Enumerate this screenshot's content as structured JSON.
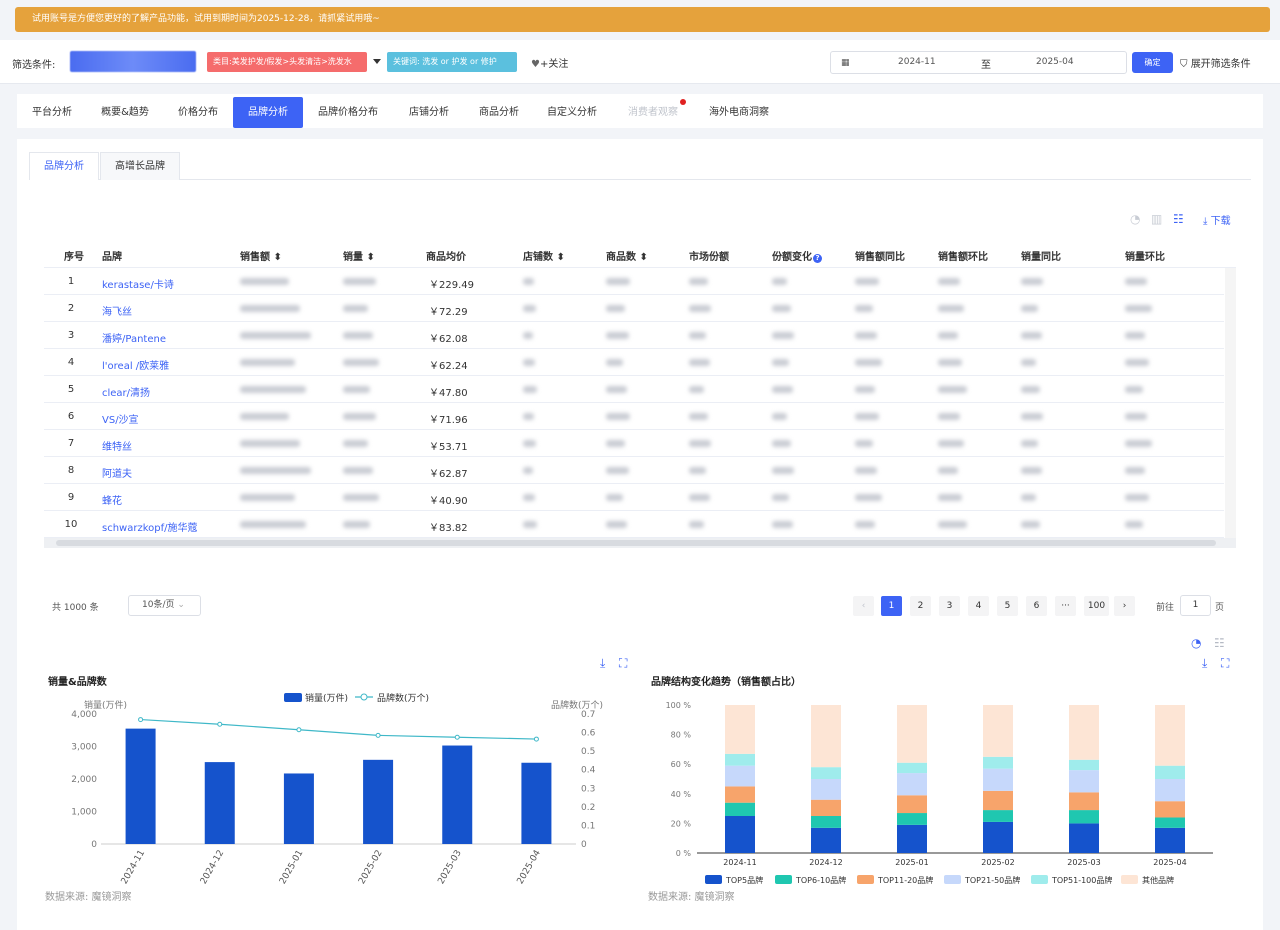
{
  "trial_banner": "试用账号是方便您更好的了解产品功能，试用到期时间为2025-12-28，请抓紧试用哦~",
  "filter": {
    "label": "筛选条件:",
    "category_tag": "类目:美发护发/假发>头发清洁>洗发水",
    "keyword_tag": "关键词: 洗发 or 护发 or 修护",
    "follow": "+关注",
    "date_start": "2024-11",
    "date_sep": "至",
    "date_end": "2025-04",
    "confirm": "确定",
    "expand": "展开筛选条件"
  },
  "nav_tabs": [
    "平台分析",
    "概要&趋势",
    "价格分布",
    "品牌分析",
    "品牌价格分布",
    "店铺分析",
    "商品分析",
    "自定义分析",
    "消费者观察",
    "海外电商洞察"
  ],
  "sub_tabs": [
    "品牌分析",
    "高增长品牌"
  ],
  "download_label": "下载",
  "table": {
    "headers": [
      "序号",
      "品牌",
      "销售额",
      "销量",
      "商品均价",
      "店铺数",
      "商品数",
      "市场份额",
      "份额变化",
      "销售额同比",
      "销售额环比",
      "销量同比",
      "销量环比"
    ],
    "rows": [
      {
        "num": "1",
        "brand": "kerastase/卡诗",
        "price": "￥229.49"
      },
      {
        "num": "2",
        "brand": "海飞丝",
        "price": "￥72.29"
      },
      {
        "num": "3",
        "brand": "潘婷/Pantene",
        "price": "￥62.08"
      },
      {
        "num": "4",
        "brand": "l'oreal /欧莱雅",
        "price": "￥62.24"
      },
      {
        "num": "5",
        "brand": "clear/清扬",
        "price": "￥47.80"
      },
      {
        "num": "6",
        "brand": "VS/沙宣",
        "price": "￥71.96"
      },
      {
        "num": "7",
        "brand": "维特丝",
        "price": "￥53.71"
      },
      {
        "num": "8",
        "brand": "阿道夫",
        "price": "￥62.87"
      },
      {
        "num": "9",
        "brand": "蜂花",
        "price": "￥40.90"
      },
      {
        "num": "10",
        "brand": "schwarzkopf/施华蔻",
        "price": "￥83.82"
      }
    ]
  },
  "pagination": {
    "total": "共 1000 条",
    "page_size": "10条/页",
    "pages": [
      "1",
      "2",
      "3",
      "4",
      "5",
      "6",
      "···",
      "100"
    ],
    "goto_label": "前往",
    "goto_value": "1",
    "goto_suffix": "页"
  },
  "chart_data": [
    {
      "type": "bar",
      "title": "销量&品牌数",
      "categories": [
        "2024-11",
        "2024-12",
        "2025-01",
        "2025-02",
        "2025-03",
        "2025-04"
      ],
      "series": [
        {
          "name": "销量(万件)",
          "type": "bar",
          "values": [
            3550,
            2520,
            2170,
            2590,
            3030,
            2500
          ],
          "color": "#1553cc"
        },
        {
          "name": "品牌数(万个)",
          "type": "line",
          "values": [
            0.67,
            0.645,
            0.615,
            0.585,
            0.575,
            0.565
          ],
          "color": "#3fb8c8"
        }
      ],
      "ylabel": "销量(万件)",
      "ylabel_right": "品牌数(万个)",
      "ylim": [
        0,
        4000
      ],
      "ylim_right": [
        0,
        0.7
      ],
      "yticks": [
        "4,000",
        "3,000",
        "2,000",
        "1,000",
        "0"
      ],
      "yticks_right": [
        "0.7",
        "0.6",
        "0.5",
        "0.4",
        "0.3",
        "0.2",
        "0.1",
        "0"
      ],
      "source": "数据来源: 魔镜洞察"
    },
    {
      "type": "bar",
      "stacked": true,
      "title": "品牌结构变化趋势（销售额占比）",
      "categories": [
        "2024-11",
        "2024-12",
        "2025-01",
        "2025-02",
        "2025-03",
        "2025-04"
      ],
      "series": [
        {
          "name": "TOP5品牌",
          "values": [
            25,
            17,
            19,
            21,
            20,
            17
          ],
          "color": "#1553cc"
        },
        {
          "name": "TOP6-10品牌",
          "values": [
            9,
            8,
            8,
            8,
            9,
            7
          ],
          "color": "#1fc7b0"
        },
        {
          "name": "TOP11-20品牌",
          "values": [
            11,
            11,
            12,
            13,
            12,
            11
          ],
          "color": "#f7a46b"
        },
        {
          "name": "TOP21-50品牌",
          "values": [
            14,
            14,
            15,
            15,
            15,
            15
          ],
          "color": "#c6d8fb"
        },
        {
          "name": "TOP51-100品牌",
          "values": [
            8,
            8,
            7,
            8,
            7,
            9
          ],
          "color": "#9fecec"
        },
        {
          "name": "其他品牌",
          "values": [
            33,
            42,
            39,
            35,
            37,
            41
          ],
          "color": "#fde5d5"
        }
      ],
      "ylim": [
        0,
        100
      ],
      "yticks": [
        "100 %",
        "80 %",
        "60 %",
        "40 %",
        "20 %",
        "0 %"
      ],
      "source": "数据来源: 魔镜洞察"
    }
  ]
}
